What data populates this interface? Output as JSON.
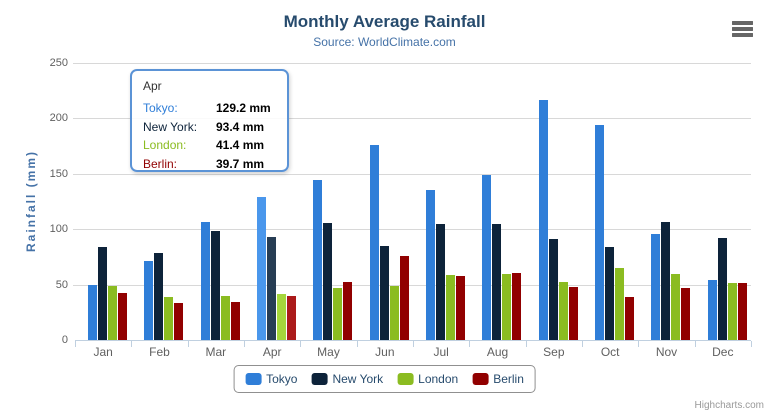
{
  "title": "Monthly Average Rainfall",
  "subtitle": "Source: WorldClimate.com",
  "credits": "Highcharts.com",
  "export_menu_icon": "hamburger-icon",
  "yaxis": {
    "title": "Rainfall (mm)",
    "ticks": [
      0,
      50,
      100,
      150,
      200,
      250
    ]
  },
  "xaxis": {
    "categories": [
      "Jan",
      "Feb",
      "Mar",
      "Apr",
      "May",
      "Jun",
      "Jul",
      "Aug",
      "Sep",
      "Oct",
      "Nov",
      "Dec"
    ]
  },
  "chart_data": {
    "type": "bar",
    "title": "Monthly Average Rainfall",
    "subtitle": "Source: WorldClimate.com",
    "xlabel": "",
    "ylabel": "Rainfall (mm)",
    "ylim": [
      0,
      250
    ],
    "grid": true,
    "legend_position": "bottom",
    "hovered_category": "Apr",
    "categories": [
      "Jan",
      "Feb",
      "Mar",
      "Apr",
      "May",
      "Jun",
      "Jul",
      "Aug",
      "Sep",
      "Oct",
      "Nov",
      "Dec"
    ],
    "series": [
      {
        "name": "Tokyo",
        "color": "#2f7ed8",
        "hover_color": "#4a97ec",
        "values": [
          49.9,
          71.5,
          106.4,
          129.2,
          144.0,
          176.0,
          135.6,
          148.5,
          216.4,
          194.1,
          95.6,
          54.4
        ]
      },
      {
        "name": "New York",
        "color": "#0d233a",
        "hover_color": "#273d54",
        "values": [
          83.6,
          78.8,
          98.5,
          93.4,
          106.0,
          84.5,
          105.0,
          104.3,
          91.2,
          83.5,
          106.6,
          92.3
        ]
      },
      {
        "name": "London",
        "color": "#8bbc21",
        "hover_color": "#a5d63b",
        "values": [
          48.9,
          38.8,
          39.3,
          41.4,
          47.0,
          48.3,
          59.0,
          59.6,
          52.4,
          65.2,
          59.3,
          51.2
        ]
      },
      {
        "name": "Berlin",
        "color": "#910000",
        "hover_color": "#ab1a1a",
        "values": [
          42.4,
          33.2,
          34.5,
          39.7,
          52.6,
          75.5,
          57.4,
          60.4,
          47.6,
          39.1,
          46.8,
          51.1
        ]
      }
    ]
  },
  "tooltip": {
    "header": "Apr",
    "rows": [
      {
        "label": "Tokyo:",
        "value": "129.2 mm",
        "color": "#2f7ed8"
      },
      {
        "label": "New York:",
        "value": "93.4 mm",
        "color": "#0d233a"
      },
      {
        "label": "London:",
        "value": "41.4 mm",
        "color": "#8bbc21"
      },
      {
        "label": "Berlin:",
        "value": "39.7 mm",
        "color": "#910000"
      }
    ]
  },
  "legend": {
    "items": [
      {
        "label": "Tokyo",
        "color": "#2f7ed8"
      },
      {
        "label": "New York",
        "color": "#0d233a"
      },
      {
        "label": "London",
        "color": "#8bbc21"
      },
      {
        "label": "Berlin",
        "color": "#910000"
      }
    ]
  },
  "colors": {
    "title": "#274b6d",
    "subtitle": "#4572a7",
    "axis_label": "#606060",
    "gridline": "#d8d8d8",
    "axis_line": "#c0d0e0",
    "legend_border": "#909090",
    "tooltip_border": "#5b93d6",
    "credits_text": "#999999"
  }
}
